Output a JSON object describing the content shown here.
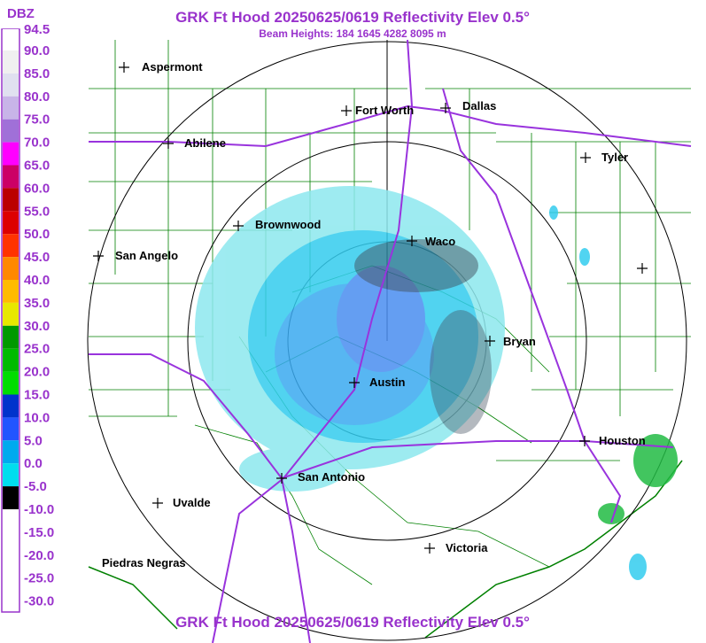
{
  "header": {
    "title": "GRK Ft Hood 20250625/0619 Reflectivity Elev 0.5°",
    "subtitle": "Beam Heights: 184 1645 4282 8095 m"
  },
  "footer": {
    "title": "GRK Ft Hood 20250625/0619 Reflectivity Elev 0.5°"
  },
  "legend": {
    "unit": "DBZ",
    "labels": [
      "94.5",
      "90.0",
      "85.0",
      "80.0",
      "75.0",
      "70.0",
      "65.0",
      "60.0",
      "55.0",
      "50.0",
      "45.0",
      "40.0",
      "35.0",
      "30.0",
      "25.0",
      "20.0",
      "15.0",
      "10.0",
      "5.0",
      "0.0",
      "-5.0",
      "-10.0",
      "-15.0",
      "-20.0",
      "-25.0",
      "-30.0"
    ]
  },
  "cities": [
    "Aspermont",
    "Fort Worth",
    "Dallas",
    "Abilene",
    "Tyler",
    "Brownwood",
    "Waco",
    "San Angelo",
    "Bryan",
    "Austin",
    "Houston",
    "San Antonio",
    "Uvalde",
    "Victoria",
    "Piedras Negras"
  ]
}
